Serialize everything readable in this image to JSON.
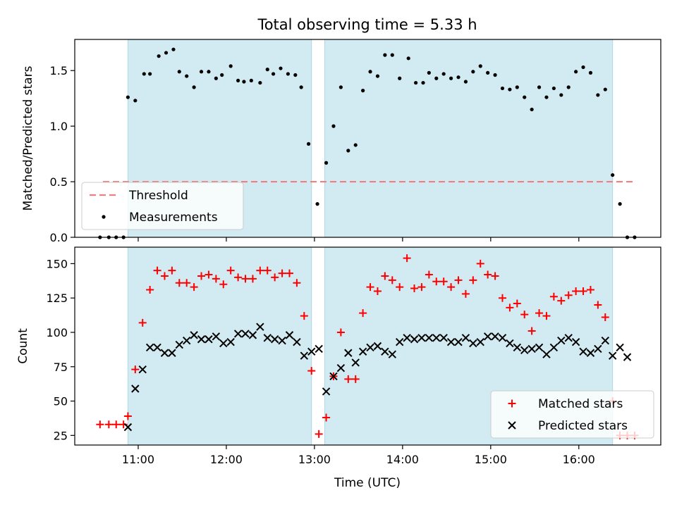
{
  "chart_data": [
    {
      "type": "scatter",
      "title": "Total observing time = 5.33 h",
      "ylabel": "Matched/Predicted stars",
      "ylim": [
        0,
        1.78
      ],
      "xlim_hours": [
        10.28,
        16.93
      ],
      "yticks": [
        0.0,
        0.5,
        1.0,
        1.5
      ],
      "ytick_labels": [
        "0.0",
        "0.5",
        "1.0",
        "1.5"
      ],
      "shaded_intervals": [
        [
          "10:53",
          "12:58"
        ],
        [
          "13:07",
          "16:23"
        ]
      ],
      "shade_color": "#add8e6",
      "threshold": {
        "name": "Threshold",
        "value": 0.5,
        "x_start": "10:36",
        "x_end": "16:39",
        "color": "#f08080"
      },
      "legend": {
        "placement": "lower-left",
        "entries": [
          "Threshold",
          "Measurements"
        ]
      },
      "series": [
        {
          "name": "Measurements",
          "color": "#000000",
          "points": [
            [
              "10:34",
              0
            ],
            [
              "10:40",
              0
            ],
            [
              "10:45",
              0
            ],
            [
              "10:50",
              0
            ],
            [
              "10:53",
              1.26
            ],
            [
              "10:58",
              1.23
            ],
            [
              "11:04",
              1.47
            ],
            [
              "11:08",
              1.47
            ],
            [
              "11:14",
              1.63
            ],
            [
              "11:19",
              1.66
            ],
            [
              "11:24",
              1.69
            ],
            [
              "11:28",
              1.49
            ],
            [
              "11:33",
              1.45
            ],
            [
              "11:38",
              1.35
            ],
            [
              "11:43",
              1.49
            ],
            [
              "11:48",
              1.49
            ],
            [
              "11:53",
              1.43
            ],
            [
              "11:57",
              1.46
            ],
            [
              "12:03",
              1.54
            ],
            [
              "12:08",
              1.41
            ],
            [
              "12:12",
              1.4
            ],
            [
              "12:17",
              1.41
            ],
            [
              "12:23",
              1.39
            ],
            [
              "12:28",
              1.51
            ],
            [
              "12:32",
              1.47
            ],
            [
              "12:37",
              1.52
            ],
            [
              "12:42",
              1.47
            ],
            [
              "12:47",
              1.46
            ],
            [
              "12:51",
              1.35
            ],
            [
              "12:56",
              0.84
            ],
            [
              "13:02",
              0.3
            ],
            [
              "13:08",
              0.67
            ],
            [
              "13:13",
              1.0
            ],
            [
              "13:18",
              1.35
            ],
            [
              "13:23",
              0.78
            ],
            [
              "13:28",
              0.83
            ],
            [
              "13:33",
              1.32
            ],
            [
              "13:38",
              1.49
            ],
            [
              "13:43",
              1.45
            ],
            [
              "13:48",
              1.64
            ],
            [
              "13:53",
              1.64
            ],
            [
              "13:58",
              1.43
            ],
            [
              "14:04",
              1.61
            ],
            [
              "14:09",
              1.39
            ],
            [
              "14:14",
              1.39
            ],
            [
              "14:18",
              1.48
            ],
            [
              "14:23",
              1.43
            ],
            [
              "14:28",
              1.47
            ],
            [
              "14:33",
              1.43
            ],
            [
              "14:38",
              1.44
            ],
            [
              "14:43",
              1.4
            ],
            [
              "14:48",
              1.49
            ],
            [
              "14:53",
              1.54
            ],
            [
              "14:58",
              1.48
            ],
            [
              "15:03",
              1.46
            ],
            [
              "15:08",
              1.34
            ],
            [
              "15:13",
              1.33
            ],
            [
              "15:18",
              1.35
            ],
            [
              "15:23",
              1.26
            ],
            [
              "15:28",
              1.15
            ],
            [
              "15:33",
              1.35
            ],
            [
              "15:38",
              1.26
            ],
            [
              "15:43",
              1.34
            ],
            [
              "15:48",
              1.28
            ],
            [
              "15:53",
              1.35
            ],
            [
              "15:58",
              1.49
            ],
            [
              "16:03",
              1.53
            ],
            [
              "16:08",
              1.48
            ],
            [
              "16:13",
              1.28
            ],
            [
              "16:18",
              1.33
            ],
            [
              "16:23",
              0.56
            ],
            [
              "16:28",
              0.3
            ],
            [
              "16:33",
              0
            ],
            [
              "16:38",
              0
            ]
          ]
        }
      ]
    },
    {
      "type": "scatter",
      "xlabel": "Time (UTC)",
      "ylabel": "Count",
      "ylim": [
        18,
        162
      ],
      "xlim_hours": [
        10.28,
        16.93
      ],
      "yticks": [
        25,
        50,
        75,
        100,
        125,
        150
      ],
      "ytick_labels": [
        "25",
        "50",
        "75",
        "100",
        "125",
        "150"
      ],
      "xticks": [
        11,
        12,
        13,
        14,
        15,
        16
      ],
      "xtick_labels": [
        "11:00",
        "12:00",
        "13:00",
        "14:00",
        "15:00",
        "16:00"
      ],
      "shaded_intervals": [
        [
          "10:53",
          "12:58"
        ],
        [
          "13:07",
          "16:23"
        ]
      ],
      "shade_color": "#add8e6",
      "legend": {
        "placement": "lower-right",
        "entries": [
          "Matched stars",
          "Predicted stars"
        ]
      },
      "series": [
        {
          "name": "Matched stars",
          "marker": "plus",
          "color": "#ff0000",
          "points": [
            [
              "10:34",
              33
            ],
            [
              "10:40",
              33
            ],
            [
              "10:45",
              33
            ],
            [
              "10:50",
              33
            ],
            [
              "10:53",
              39
            ],
            [
              "10:58",
              73
            ],
            [
              "11:03",
              107
            ],
            [
              "11:08",
              131
            ],
            [
              "11:13",
              145
            ],
            [
              "11:18",
              141
            ],
            [
              "11:23",
              145
            ],
            [
              "11:28",
              136
            ],
            [
              "11:33",
              136
            ],
            [
              "11:38",
              133
            ],
            [
              "11:43",
              141
            ],
            [
              "11:48",
              142
            ],
            [
              "11:53",
              139
            ],
            [
              "11:58",
              135
            ],
            [
              "12:03",
              145
            ],
            [
              "12:08",
              140
            ],
            [
              "12:13",
              139
            ],
            [
              "12:18",
              139
            ],
            [
              "12:23",
              145
            ],
            [
              "12:28",
              145
            ],
            [
              "12:33",
              140
            ],
            [
              "12:38",
              143
            ],
            [
              "12:43",
              143
            ],
            [
              "12:48",
              136
            ],
            [
              "12:53",
              112
            ],
            [
              "12:58",
              72
            ],
            [
              "13:03",
              26
            ],
            [
              "13:08",
              38
            ],
            [
              "13:13",
              68
            ],
            [
              "13:18",
              100
            ],
            [
              "13:23",
              66
            ],
            [
              "13:28",
              66
            ],
            [
              "13:33",
              114
            ],
            [
              "13:38",
              133
            ],
            [
              "13:43",
              130
            ],
            [
              "13:48",
              141
            ],
            [
              "13:53",
              138
            ],
            [
              "13:58",
              133
            ],
            [
              "14:03",
              154
            ],
            [
              "14:08",
              132
            ],
            [
              "14:13",
              133
            ],
            [
              "14:18",
              142
            ],
            [
              "14:23",
              137
            ],
            [
              "14:28",
              137
            ],
            [
              "14:33",
              133
            ],
            [
              "14:38",
              138
            ],
            [
              "14:43",
              128
            ],
            [
              "14:48",
              138
            ],
            [
              "14:53",
              150
            ],
            [
              "14:58",
              142
            ],
            [
              "15:03",
              141
            ],
            [
              "15:08",
              125
            ],
            [
              "15:13",
              118
            ],
            [
              "15:18",
              121
            ],
            [
              "15:23",
              113
            ],
            [
              "15:28",
              101
            ],
            [
              "15:33",
              114
            ],
            [
              "15:38",
              112
            ],
            [
              "15:43",
              126
            ],
            [
              "15:48",
              123
            ],
            [
              "15:53",
              127
            ],
            [
              "15:58",
              130
            ],
            [
              "16:03",
              130
            ],
            [
              "16:08",
              131
            ],
            [
              "16:13",
              120
            ],
            [
              "16:18",
              111
            ],
            [
              "16:23",
              50
            ],
            [
              "16:28",
              25
            ],
            [
              "16:33",
              25
            ],
            [
              "16:38",
              25
            ]
          ]
        },
        {
          "name": "Predicted stars",
          "marker": "x",
          "color": "#000000",
          "points": [
            [
              "10:53",
              31
            ],
            [
              "10:58",
              59
            ],
            [
              "11:03",
              73
            ],
            [
              "11:08",
              89
            ],
            [
              "11:13",
              89
            ],
            [
              "11:18",
              85
            ],
            [
              "11:23",
              85
            ],
            [
              "11:28",
              91
            ],
            [
              "11:33",
              94
            ],
            [
              "11:38",
              98
            ],
            [
              "11:43",
              95
            ],
            [
              "11:48",
              95
            ],
            [
              "11:53",
              97
            ],
            [
              "11:58",
              92
            ],
            [
              "12:03",
              93
            ],
            [
              "12:08",
              99
            ],
            [
              "12:13",
              99
            ],
            [
              "12:18",
              98
            ],
            [
              "12:23",
              104
            ],
            [
              "12:28",
              96
            ],
            [
              "12:33",
              95
            ],
            [
              "12:38",
              94
            ],
            [
              "12:43",
              98
            ],
            [
              "12:48",
              93
            ],
            [
              "12:53",
              83
            ],
            [
              "12:58",
              86
            ],
            [
              "13:03",
              88
            ],
            [
              "13:08",
              57
            ],
            [
              "13:13",
              68
            ],
            [
              "13:18",
              74
            ],
            [
              "13:23",
              85
            ],
            [
              "13:28",
              78
            ],
            [
              "13:33",
              86
            ],
            [
              "13:38",
              89
            ],
            [
              "13:43",
              90
            ],
            [
              "13:48",
              86
            ],
            [
              "13:53",
              84
            ],
            [
              "13:58",
              93
            ],
            [
              "14:03",
              96
            ],
            [
              "14:08",
              95
            ],
            [
              "14:13",
              96
            ],
            [
              "14:18",
              96
            ],
            [
              "14:23",
              96
            ],
            [
              "14:28",
              96
            ],
            [
              "14:33",
              93
            ],
            [
              "14:38",
              93
            ],
            [
              "14:43",
              96
            ],
            [
              "14:48",
              92
            ],
            [
              "14:53",
              93
            ],
            [
              "14:58",
              97
            ],
            [
              "15:03",
              97
            ],
            [
              "15:08",
              96
            ],
            [
              "15:13",
              92
            ],
            [
              "15:18",
              89
            ],
            [
              "15:23",
              87
            ],
            [
              "15:28",
              88
            ],
            [
              "15:33",
              89
            ],
            [
              "15:38",
              84
            ],
            [
              "15:43",
              89
            ],
            [
              "15:48",
              94
            ],
            [
              "15:53",
              96
            ],
            [
              "15:58",
              93
            ],
            [
              "16:03",
              86
            ],
            [
              "16:08",
              85
            ],
            [
              "16:13",
              88
            ],
            [
              "16:18",
              94
            ],
            [
              "16:23",
              83
            ],
            [
              "16:28",
              89
            ],
            [
              "16:33",
              82
            ]
          ]
        }
      ]
    }
  ]
}
